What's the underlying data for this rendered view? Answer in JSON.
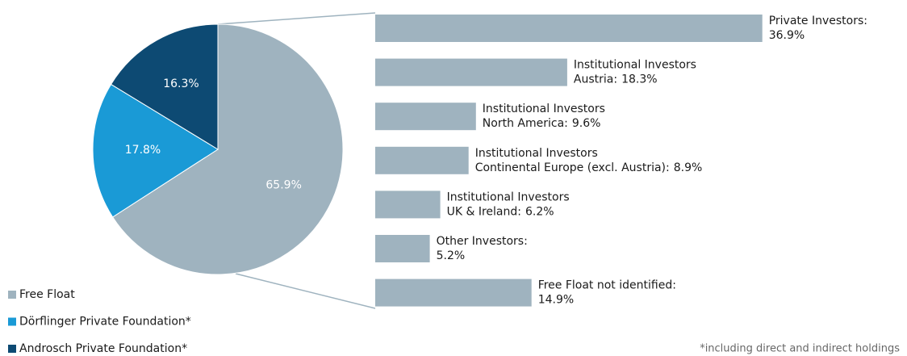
{
  "chart_data": [
    {
      "type": "pie",
      "categories": [
        "Free Float",
        "Dörflinger Private Foundation*",
        "Androsch Private Foundation*"
      ],
      "values": [
        65.9,
        17.8,
        16.3
      ],
      "value_labels": [
        "65.9%",
        "17.8%",
        "16.3%"
      ],
      "colors": [
        "#9fb3bf",
        "#1a9ad6",
        "#0d4a73"
      ]
    },
    {
      "type": "bar",
      "orientation": "horizontal",
      "categories": [
        [
          "Private Investors:"
        ],
        [
          "Institutional Investors",
          "Austria:"
        ],
        [
          "Institutional Investors",
          "North America:"
        ],
        [
          "Institutional Investors",
          "Continental Europe (excl. Austria):"
        ],
        [
          "Institutional Investors",
          "UK & Ireland:"
        ],
        [
          "Other Investors:"
        ],
        [
          "Free Float not identified:"
        ]
      ],
      "values": [
        36.9,
        18.3,
        9.6,
        8.9,
        6.2,
        5.2,
        14.9
      ],
      "value_labels": [
        "36.9%",
        "18.3%",
        "9.6%",
        "8.9%",
        "6.2%",
        "5.2%",
        "14.9%"
      ],
      "color": "#9fb3bf"
    }
  ],
  "footnote": "*including direct and indirect holdings"
}
